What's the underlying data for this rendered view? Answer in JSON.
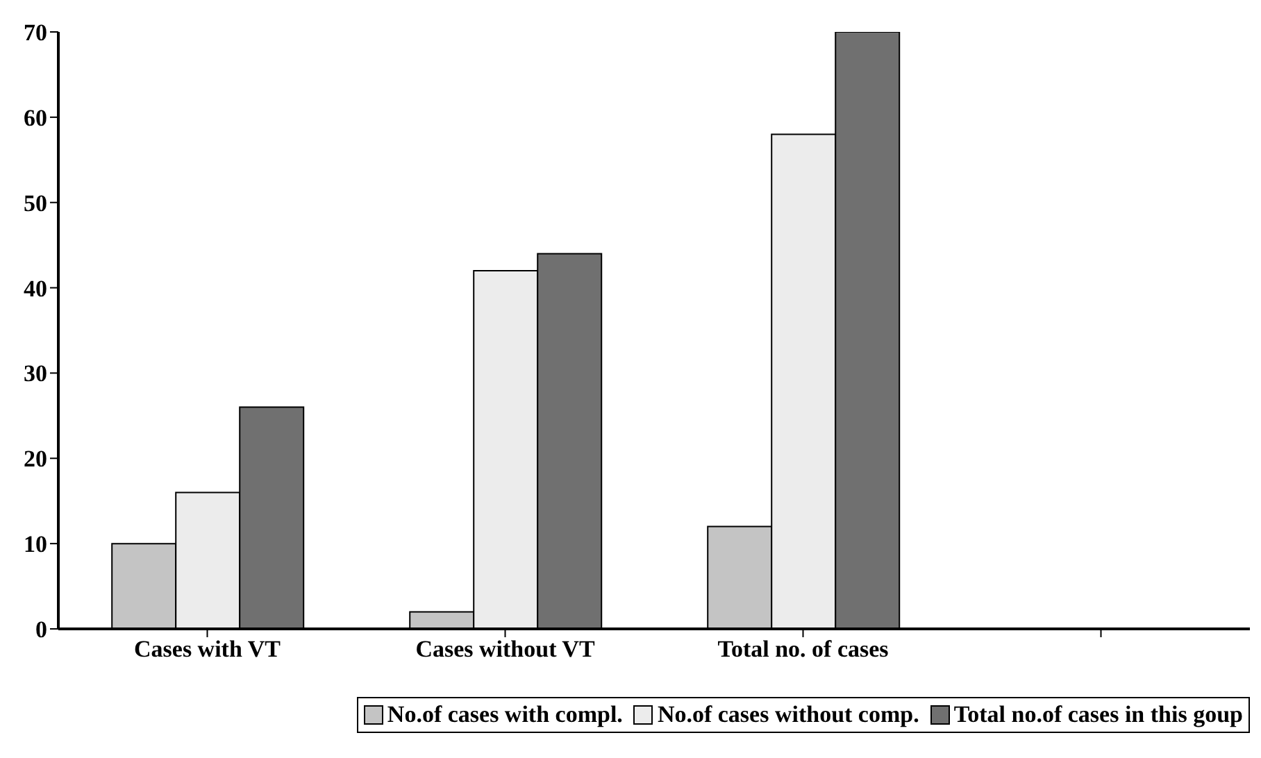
{
  "chart_data": {
    "type": "bar",
    "categories": [
      "Cases with VT",
      "Cases without VT",
      "Total no. of cases",
      null
    ],
    "series": [
      {
        "name": "No.of cases with compl.",
        "color": "#c4c4c4",
        "values": [
          10,
          2,
          12,
          null
        ]
      },
      {
        "name": "No.of cases without comp.",
        "color": "#ececec",
        "values": [
          16,
          42,
          58,
          null
        ]
      },
      {
        "name": "Total no.of cases in this goup",
        "color": "#707070",
        "values": [
          26,
          44,
          70,
          null
        ]
      }
    ],
    "ylim": [
      0,
      70
    ],
    "yticks": [
      0,
      10,
      20,
      30,
      40,
      50,
      60,
      70
    ],
    "grid": false,
    "legend": "bottom"
  }
}
